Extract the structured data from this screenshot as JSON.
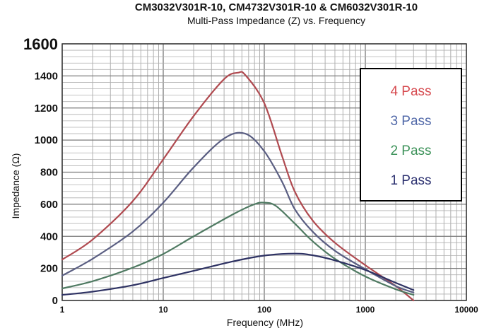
{
  "chart_data": {
    "type": "line",
    "title": "CM3032V301R-10, CM4732V301R-10 & CM6032V301R-10",
    "subtitle": "Multi-Pass Impedance (Z) vs. Frequency",
    "xlabel": "Frequency (MHz)",
    "ylabel": "Impedance (Ω)",
    "x_scale": "log",
    "xlim": [
      1,
      10000
    ],
    "ylim": [
      0,
      1600
    ],
    "x_ticks": [
      "1",
      "10",
      "100",
      "1000",
      "10000"
    ],
    "y_ticks": [
      "0",
      "200",
      "400",
      "600",
      "800",
      "1000",
      "1200",
      "1400",
      "1600"
    ],
    "grid": true,
    "legend_position": "top-right",
    "series": [
      {
        "name": "4 Pass",
        "color": "#b04a50",
        "points": [
          [
            1,
            255
          ],
          [
            2,
            380
          ],
          [
            5,
            620
          ],
          [
            10,
            880
          ],
          [
            20,
            1150
          ],
          [
            40,
            1380
          ],
          [
            55,
            1420
          ],
          [
            65,
            1405
          ],
          [
            100,
            1230
          ],
          [
            150,
            900
          ],
          [
            200,
            680
          ],
          [
            300,
            500
          ],
          [
            500,
            360
          ],
          [
            1000,
            220
          ],
          [
            2000,
            90
          ],
          [
            3000,
            0
          ]
        ]
      },
      {
        "name": "3 Pass",
        "color": "#5a5e82",
        "points": [
          [
            1,
            155
          ],
          [
            2,
            260
          ],
          [
            5,
            430
          ],
          [
            10,
            610
          ],
          [
            20,
            830
          ],
          [
            40,
            1010
          ],
          [
            65,
            1040
          ],
          [
            100,
            930
          ],
          [
            150,
            740
          ],
          [
            200,
            570
          ],
          [
            300,
            430
          ],
          [
            500,
            310
          ],
          [
            1000,
            195
          ],
          [
            2000,
            90
          ],
          [
            3000,
            50
          ]
        ]
      },
      {
        "name": "2 Pass",
        "color": "#4f7a62",
        "points": [
          [
            1,
            75
          ],
          [
            2,
            120
          ],
          [
            5,
            205
          ],
          [
            10,
            290
          ],
          [
            20,
            400
          ],
          [
            50,
            540
          ],
          [
            80,
            600
          ],
          [
            100,
            610
          ],
          [
            130,
            590
          ],
          [
            200,
            480
          ],
          [
            300,
            370
          ],
          [
            500,
            260
          ],
          [
            1000,
            150
          ],
          [
            2000,
            70
          ],
          [
            3000,
            35
          ]
        ]
      },
      {
        "name": "1 Pass",
        "color": "#2e3263",
        "points": [
          [
            1,
            35
          ],
          [
            2,
            55
          ],
          [
            5,
            95
          ],
          [
            10,
            140
          ],
          [
            20,
            185
          ],
          [
            50,
            245
          ],
          [
            100,
            280
          ],
          [
            200,
            292
          ],
          [
            300,
            282
          ],
          [
            500,
            250
          ],
          [
            1000,
            190
          ],
          [
            2000,
            110
          ],
          [
            3000,
            65
          ]
        ]
      }
    ]
  },
  "legend": {
    "items": [
      {
        "label": "4 Pass",
        "color": "#d64a4f"
      },
      {
        "label": "3 Pass",
        "color": "#5068a8"
      },
      {
        "label": "2 Pass",
        "color": "#3b9158"
      },
      {
        "label": "1 Pass",
        "color": "#2c3170"
      }
    ]
  }
}
